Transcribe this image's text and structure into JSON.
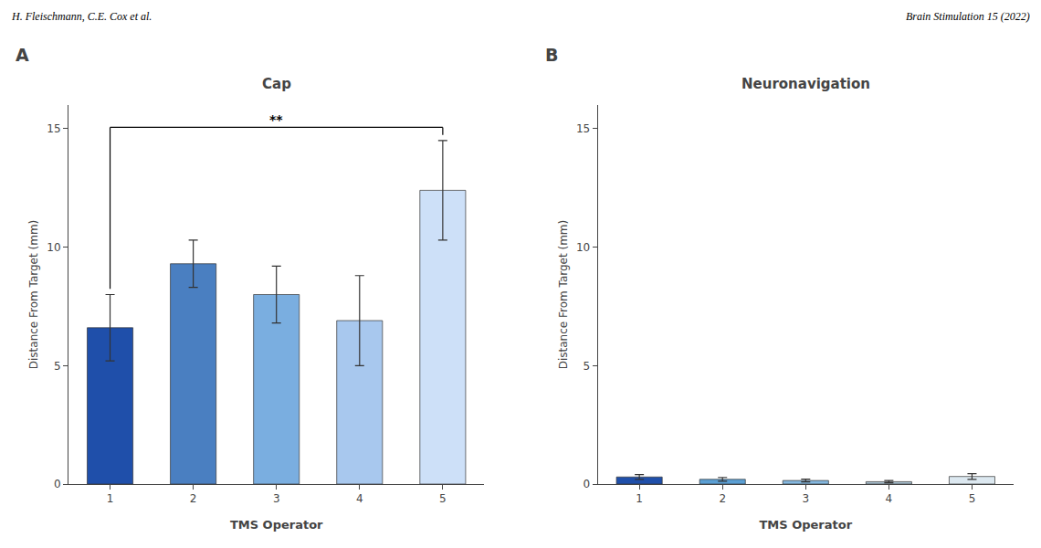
{
  "chart_data": [
    {
      "type": "bar",
      "title": "Cap",
      "categories": [
        "1",
        "2",
        "3",
        "4",
        "5"
      ],
      "values": [
        6.6,
        9.3,
        8.0,
        6.9,
        12.4
      ],
      "errors": [
        1.4,
        1.0,
        1.2,
        1.9,
        2.1
      ],
      "colors": [
        "#1f4faa",
        "#4a7fc1",
        "#7aaee0",
        "#a8c8ee",
        "#cde0f8"
      ],
      "xlabel": "TMS Operator",
      "ylabel": "Distance From Target (mm)",
      "ylim": [
        0,
        16
      ],
      "yticks": [
        0,
        5,
        10,
        15
      ],
      "grid": false,
      "annotations": [
        {
          "text": "H. Fleischmann, C.E. Cox et al.",
          "kind": "header"
        },
        {
          "text": "A",
          "kind": "panel_label"
        },
        {
          "text": "**",
          "kind": "significance",
          "from": "1",
          "to": "5"
        }
      ]
    },
    {
      "type": "bar",
      "title": "Neuronavigation",
      "categories": [
        "1",
        "2",
        "3",
        "4",
        "5"
      ],
      "values": [
        0.3,
        0.2,
        0.15,
        0.1,
        0.32
      ],
      "errors": [
        0.1,
        0.08,
        0.06,
        0.05,
        0.12
      ],
      "colors": [
        "#1f4faa",
        "#5b9fd4",
        "#85b8e0",
        "#a8c0d0",
        "#dce8f0"
      ],
      "xlabel": "TMS Operator",
      "ylabel": "Distance From Target (mm)",
      "ylim": [
        0,
        16
      ],
      "yticks": [
        0,
        5,
        10,
        15
      ],
      "grid": false,
      "annotations": [
        {
          "text": "Brain Stimulation 15 (2022)",
          "kind": "header"
        },
        {
          "text": "B",
          "kind": "panel_label"
        }
      ]
    }
  ]
}
